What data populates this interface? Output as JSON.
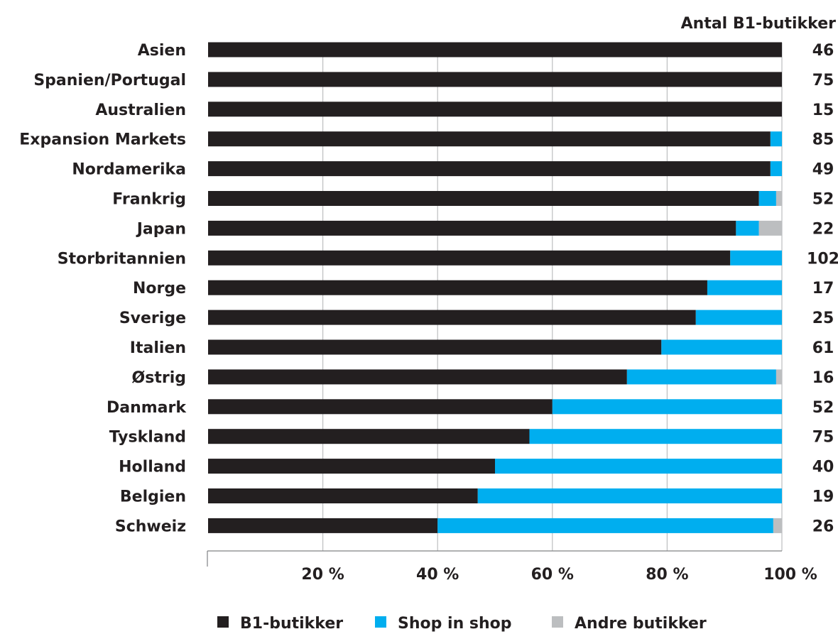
{
  "chart_data": {
    "type": "bar",
    "orientation": "horizontal",
    "stacked": true,
    "right_column_title": "Antal B1-butikker",
    "categories": [
      "Asien",
      "Spanien/Portugal",
      "Australien",
      "Expansion Markets",
      "Nordamerika",
      "Frankrig",
      "Japan",
      "Storbritannien",
      "Norge",
      "Sverige",
      "Italien",
      "Østrig",
      "Danmark",
      "Tyskland",
      "Holland",
      "Belgien",
      "Schweiz"
    ],
    "counts": [
      "46",
      "75",
      "15",
      "85",
      "49",
      "52",
      "22",
      "102",
      "17",
      "25",
      "61",
      "16",
      "52",
      "75",
      "40",
      "19",
      "26"
    ],
    "series": [
      {
        "name": "B1-butikker",
        "color": "#231f20",
        "values": [
          100,
          100,
          100,
          98,
          98,
          96,
          92,
          91,
          87,
          85,
          79,
          73,
          60,
          56,
          50,
          47,
          40
        ]
      },
      {
        "name": "Shop in shop",
        "color": "#00aeef",
        "values": [
          0,
          0,
          0,
          2,
          2,
          3,
          4,
          9,
          13,
          15,
          21,
          26,
          40,
          44,
          50,
          53,
          58.5
        ]
      },
      {
        "name": "Andre butikker",
        "color": "#bcbec0",
        "values": [
          0,
          0,
          0,
          0,
          0,
          1,
          4,
          0,
          0,
          0,
          0,
          1,
          0,
          0,
          0,
          0,
          1.5
        ]
      }
    ],
    "xlim": [
      0,
      100
    ],
    "xticks": [
      20,
      40,
      60,
      80,
      100
    ],
    "xtick_labels": [
      "20 %",
      "40 %",
      "60 %",
      "80 %",
      "100 %"
    ],
    "grid": true,
    "legend_position": "bottom"
  }
}
